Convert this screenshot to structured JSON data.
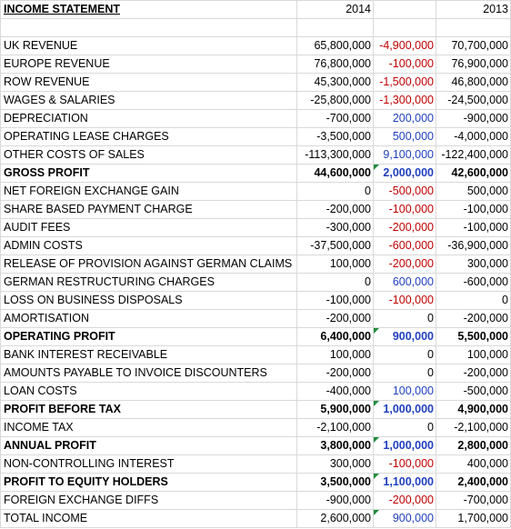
{
  "header": {
    "title": "INCOME STATEMENT",
    "col_2014": "2014",
    "col_diff": "",
    "col_2013": "2013"
  },
  "rows": [
    {
      "label": "UK REVENUE",
      "v2014": "65,800,000",
      "diff": "-4,900,000",
      "diff_sign": "neg",
      "v2013": "70,700,000",
      "bold": false,
      "flag": false
    },
    {
      "label": "EUROPE REVENUE",
      "v2014": "76,800,000",
      "diff": "-100,000",
      "diff_sign": "neg",
      "v2013": "76,900,000",
      "bold": false,
      "flag": false
    },
    {
      "label": "ROW REVENUE",
      "v2014": "45,300,000",
      "diff": "-1,500,000",
      "diff_sign": "neg",
      "v2013": "46,800,000",
      "bold": false,
      "flag": false
    },
    {
      "label": "WAGES & SALARIES",
      "v2014": "-25,800,000",
      "diff": "-1,300,000",
      "diff_sign": "neg",
      "v2013": "-24,500,000",
      "bold": false,
      "flag": false
    },
    {
      "label": "DEPRECIATION",
      "v2014": "-700,000",
      "diff": "200,000",
      "diff_sign": "pos",
      "v2013": "-900,000",
      "bold": false,
      "flag": false
    },
    {
      "label": "OPERATING LEASE CHARGES",
      "v2014": "-3,500,000",
      "diff": "500,000",
      "diff_sign": "pos",
      "v2013": "-4,000,000",
      "bold": false,
      "flag": false
    },
    {
      "label": "OTHER COSTS OF SALES",
      "v2014": "-113,300,000",
      "diff": "9,100,000",
      "diff_sign": "pos",
      "v2013": "-122,400,000",
      "bold": false,
      "flag": false
    },
    {
      "label": "GROSS PROFIT",
      "v2014": "44,600,000",
      "diff": "2,000,000",
      "diff_sign": "pos",
      "v2013": "42,600,000",
      "bold": true,
      "flag": true
    },
    {
      "label": "NET FOREIGN EXCHANGE GAIN",
      "v2014": "0",
      "diff": "-500,000",
      "diff_sign": "neg",
      "v2013": "500,000",
      "bold": false,
      "flag": false
    },
    {
      "label": "SHARE BASED PAYMENT CHARGE",
      "v2014": "-200,000",
      "diff": "-100,000",
      "diff_sign": "neg",
      "v2013": "-100,000",
      "bold": false,
      "flag": false
    },
    {
      "label": "AUDIT FEES",
      "v2014": "-300,000",
      "diff": "-200,000",
      "diff_sign": "neg",
      "v2013": "-100,000",
      "bold": false,
      "flag": false
    },
    {
      "label": "ADMIN COSTS",
      "v2014": "-37,500,000",
      "diff": "-600,000",
      "diff_sign": "neg",
      "v2013": "-36,900,000",
      "bold": false,
      "flag": false
    },
    {
      "label": "RELEASE OF PROVISION AGAINST GERMAN CLAIMS",
      "v2014": "100,000",
      "diff": "-200,000",
      "diff_sign": "neg",
      "v2013": "300,000",
      "bold": false,
      "flag": false
    },
    {
      "label": "GERMAN RESTRUCTURING CHARGES",
      "v2014": "0",
      "diff": "600,000",
      "diff_sign": "pos",
      "v2013": "-600,000",
      "bold": false,
      "flag": false
    },
    {
      "label": "LOSS ON BUSINESS DISPOSALS",
      "v2014": "-100,000",
      "diff": "-100,000",
      "diff_sign": "neg",
      "v2013": "0",
      "bold": false,
      "flag": false
    },
    {
      "label": "AMORTISATION",
      "v2014": "-200,000",
      "diff": "0",
      "diff_sign": "zero",
      "v2013": "-200,000",
      "bold": false,
      "flag": false
    },
    {
      "label": "OPERATING PROFIT",
      "v2014": "6,400,000",
      "diff": "900,000",
      "diff_sign": "pos",
      "v2013": "5,500,000",
      "bold": true,
      "flag": true
    },
    {
      "label": "BANK INTEREST RECEIVABLE",
      "v2014": "100,000",
      "diff": "0",
      "diff_sign": "zero",
      "v2013": "100,000",
      "bold": false,
      "flag": false
    },
    {
      "label": "AMOUNTS PAYABLE TO INVOICE DISCOUNTERS",
      "v2014": "-200,000",
      "diff": "0",
      "diff_sign": "zero",
      "v2013": "-200,000",
      "bold": false,
      "flag": false
    },
    {
      "label": "LOAN COSTS",
      "v2014": "-400,000",
      "diff": "100,000",
      "diff_sign": "pos",
      "v2013": "-500,000",
      "bold": false,
      "flag": false
    },
    {
      "label": "PROFIT BEFORE TAX",
      "v2014": "5,900,000",
      "diff": "1,000,000",
      "diff_sign": "pos",
      "v2013": "4,900,000",
      "bold": true,
      "flag": true
    },
    {
      "label": "INCOME TAX",
      "v2014": "-2,100,000",
      "diff": "0",
      "diff_sign": "zero",
      "v2013": "-2,100,000",
      "bold": false,
      "flag": false
    },
    {
      "label": "ANNUAL PROFIT",
      "v2014": "3,800,000",
      "diff": "1,000,000",
      "diff_sign": "pos",
      "v2013": "2,800,000",
      "bold": true,
      "flag": true
    },
    {
      "label": "NON-CONTROLLING INTEREST",
      "v2014": "300,000",
      "diff": "-100,000",
      "diff_sign": "neg",
      "v2013": "400,000",
      "bold": false,
      "flag": false
    },
    {
      "label": "PROFIT TO EQUITY HOLDERS",
      "v2014": "3,500,000",
      "diff": "1,100,000",
      "diff_sign": "pos",
      "v2013": "2,400,000",
      "bold": true,
      "flag": true
    },
    {
      "label": "FOREIGN EXCHANGE DIFFS",
      "v2014": "-900,000",
      "diff": "-200,000",
      "diff_sign": "neg",
      "v2013": "-700,000",
      "bold": false,
      "flag": false
    },
    {
      "label": "TOTAL INCOME",
      "v2014": "2,600,000",
      "diff": "900,000",
      "diff_sign": "pos",
      "v2013": "1,700,000",
      "bold": false,
      "flag": true
    }
  ],
  "colors": {
    "negative": "#c00000",
    "positive": "#1f3fbf",
    "gridline": "#d9d9d9",
    "error_flag": "#1e8c3a"
  }
}
